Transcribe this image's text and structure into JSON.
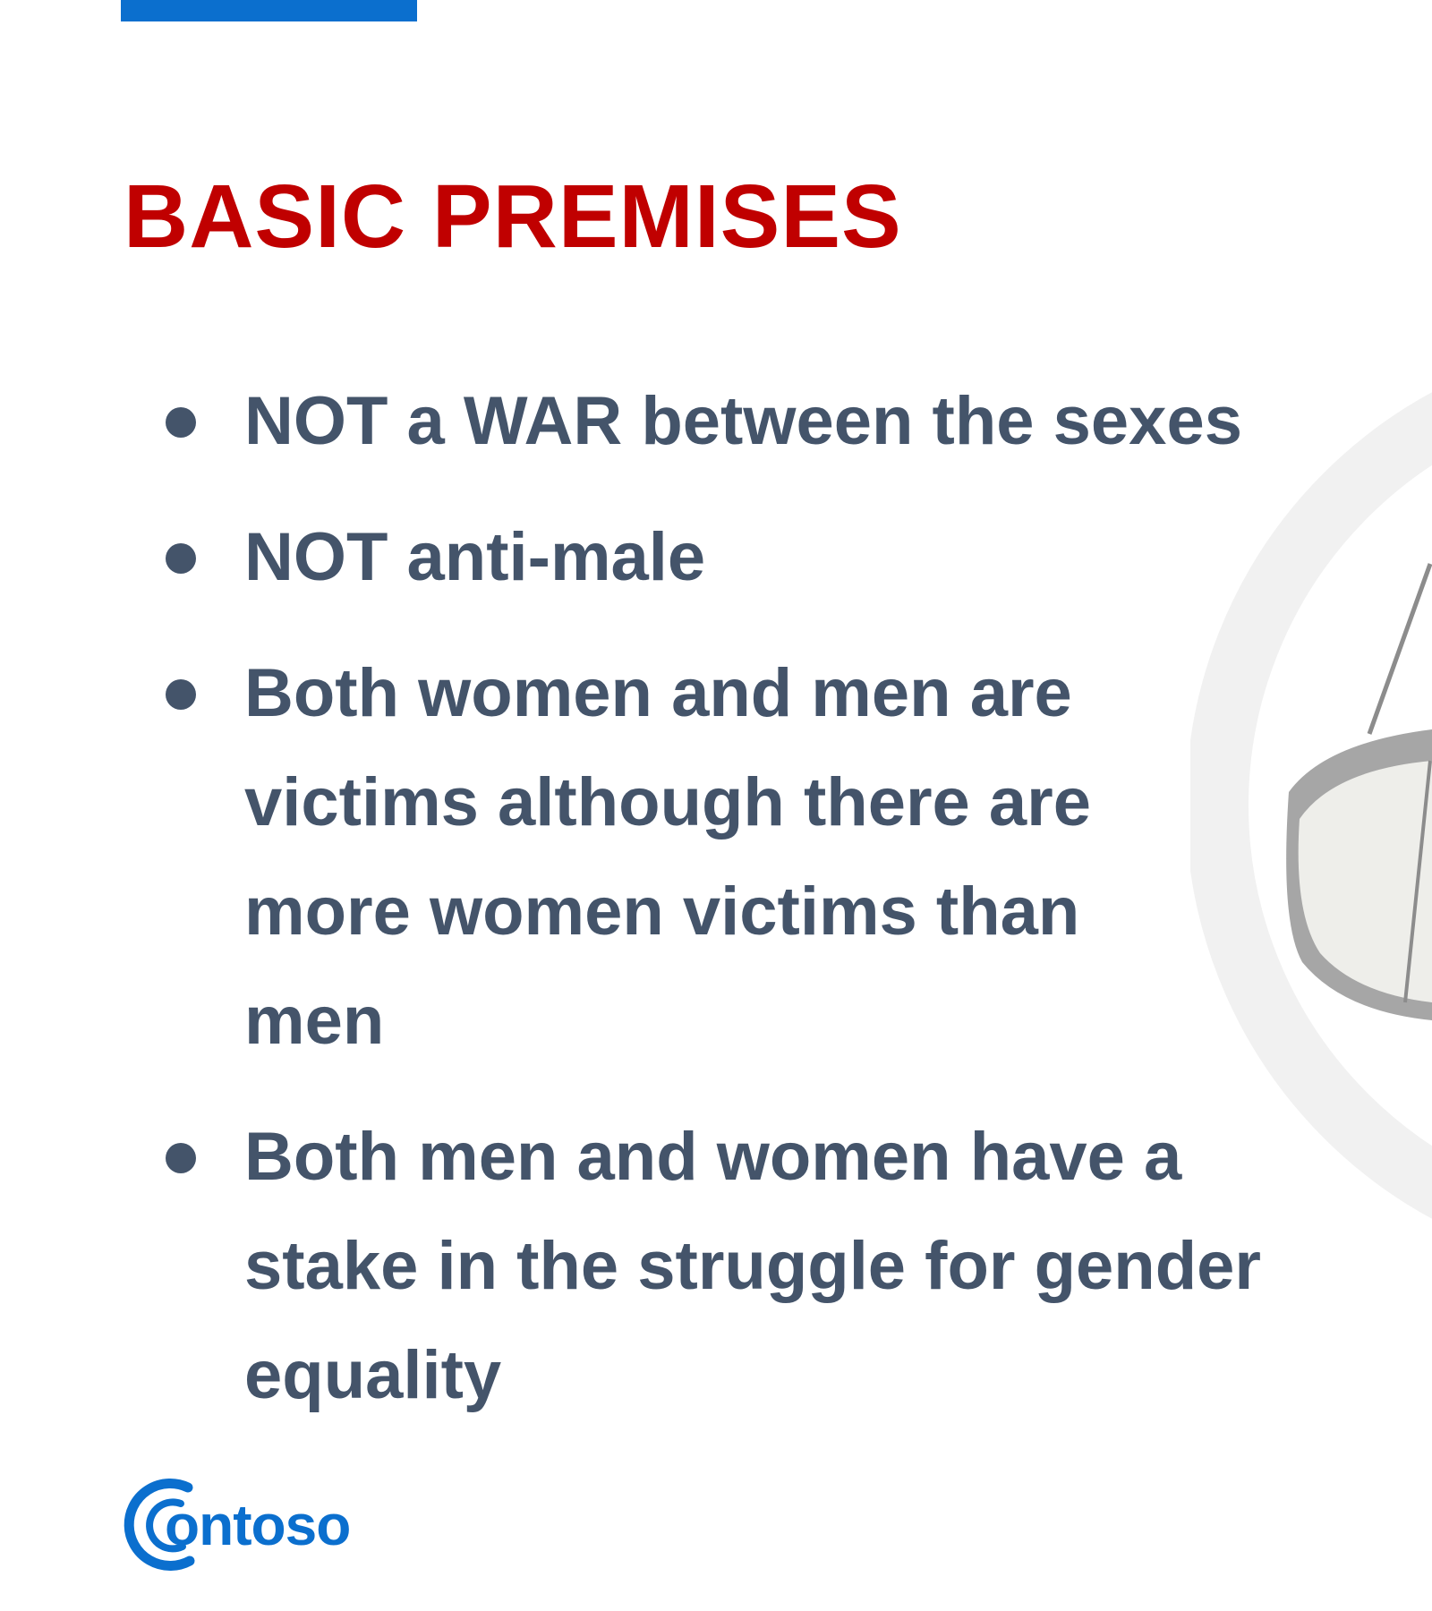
{
  "slide": {
    "title": "BASIC PREMISES",
    "bullets": [
      {
        "text": "NOT a WAR between the sexes"
      },
      {
        "text": "NOT anti-male"
      },
      {
        "text": "Both women and men are victims although there are more women victims than men"
      },
      {
        "text": "Both men and women have a stake in the struggle for gender equality"
      }
    ]
  },
  "logo": {
    "text": "ontoso",
    "icon": "contoso-c-logo-icon"
  },
  "decoration": {
    "icon": "balance-scale-icon"
  },
  "colors": {
    "accent_bar": "#0b6fce",
    "title": "#c00000",
    "body_text": "#44546a",
    "logo": "#0b6fce",
    "decoration_ring": "#f1f1f1",
    "decoration_pan": "#a6a6a6"
  }
}
